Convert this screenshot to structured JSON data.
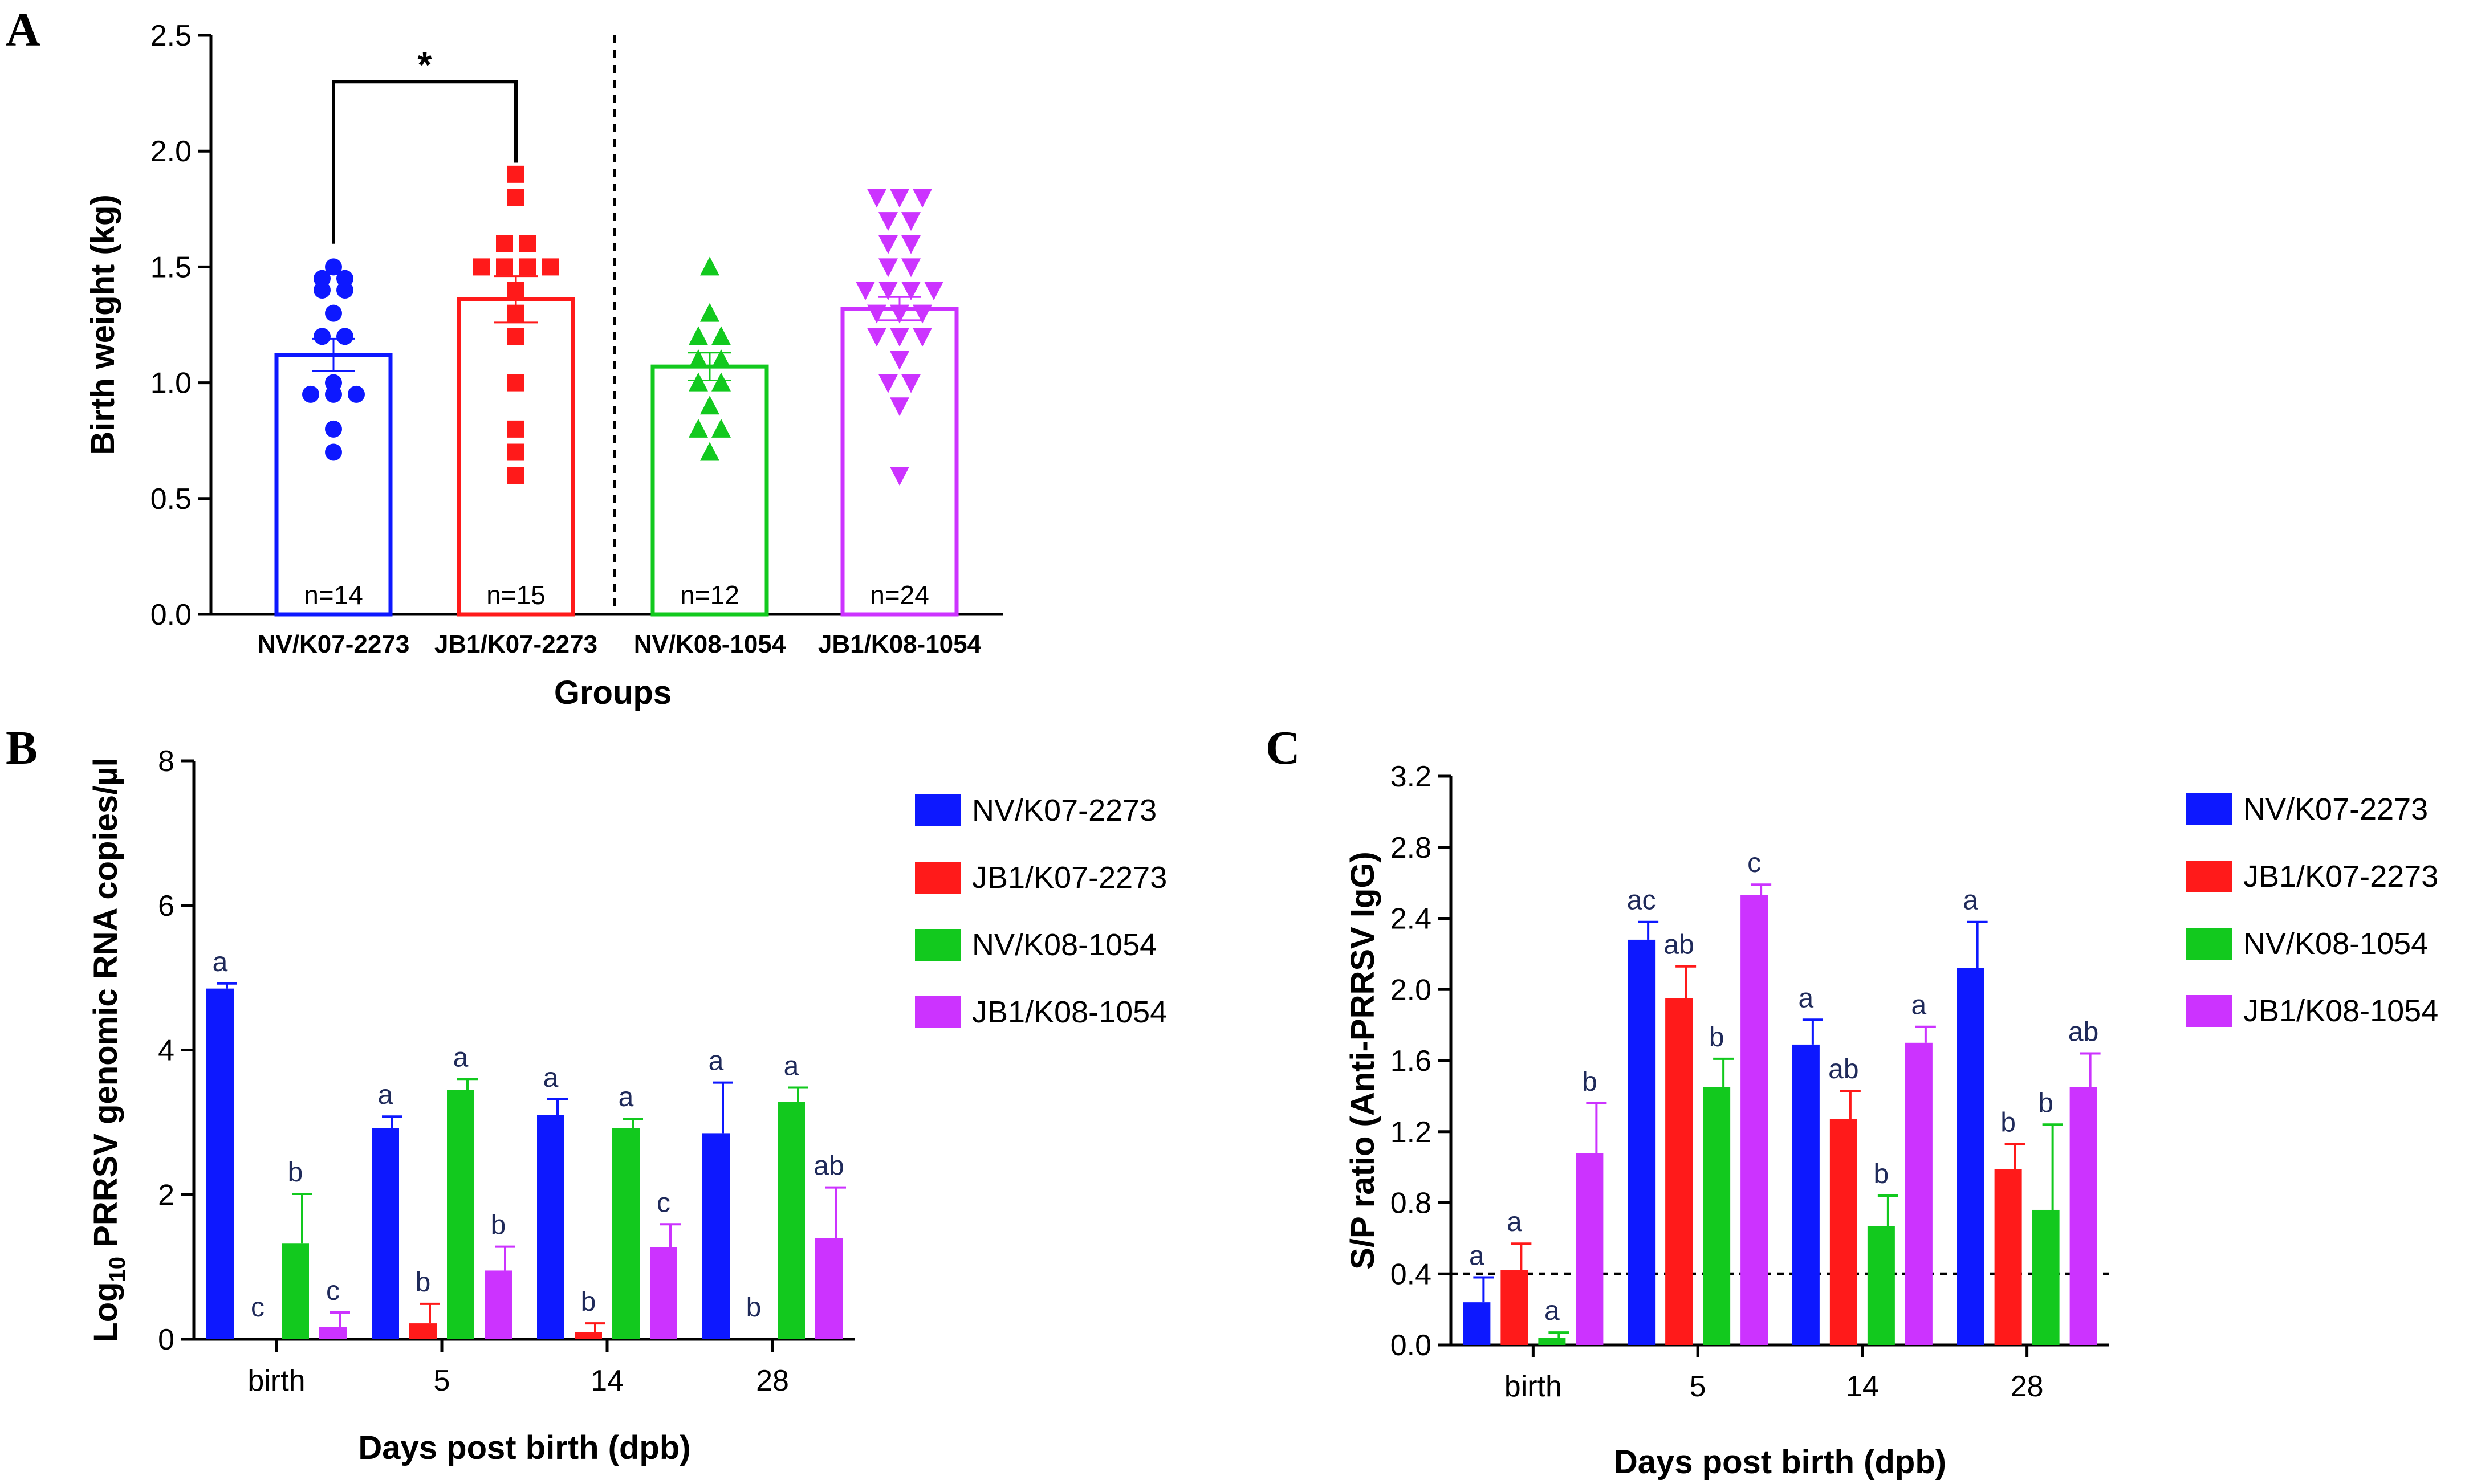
{
  "series_colors": {
    "NV/K07-2273": "#0d18ff",
    "JB1/K07-2273": "#ff1a1a",
    "NV/K08-1054": "#12c91e",
    "JB1/K08-1054": "#cc33ff"
  },
  "chart_data": [
    {
      "panel": "A",
      "type": "scatter",
      "ylabel": "Birth weight (kg)",
      "xlabel": "Groups",
      "ylim": [
        0,
        2.5
      ],
      "yticks": [
        "0.0",
        "0.5",
        "1.0",
        "1.5",
        "2.0",
        "2.5"
      ],
      "significance": "*",
      "groups": [
        {
          "name": "NV/K07-2273",
          "n_label": "n=14",
          "mean": 1.12,
          "sem": 0.07,
          "marker": "circle",
          "points": [
            1.5,
            1.45,
            1.45,
            1.4,
            1.4,
            1.3,
            1.2,
            1.2,
            1.0,
            0.95,
            0.95,
            0.95,
            0.8,
            0.7
          ]
        },
        {
          "name": "JB1/K07-2273",
          "n_label": "n=15",
          "mean": 1.36,
          "sem": 0.1,
          "marker": "square",
          "points": [
            1.9,
            1.8,
            1.6,
            1.6,
            1.5,
            1.5,
            1.5,
            1.5,
            1.4,
            1.3,
            1.2,
            1.0,
            0.8,
            0.7,
            0.6
          ]
        },
        {
          "name": "NV/K08-1054",
          "n_label": "n=12",
          "mean": 1.07,
          "sem": 0.06,
          "marker": "triangle-up",
          "points": [
            1.5,
            1.3,
            1.2,
            1.2,
            1.1,
            1.1,
            1.0,
            1.0,
            0.9,
            0.8,
            0.8,
            0.7
          ]
        },
        {
          "name": "JB1/K08-1054",
          "n_label": "n=24",
          "mean": 1.32,
          "sem": 0.05,
          "marker": "triangle-down",
          "points": [
            1.8,
            1.8,
            1.8,
            1.7,
            1.7,
            1.6,
            1.6,
            1.5,
            1.5,
            1.4,
            1.4,
            1.4,
            1.4,
            1.3,
            1.3,
            1.3,
            1.2,
            1.2,
            1.2,
            1.1,
            1.0,
            1.0,
            0.9,
            0.6
          ]
        }
      ]
    },
    {
      "panel": "B",
      "type": "bar",
      "ylabel_prefix": "Log",
      "ylabel_sub": "10",
      "ylabel_rest": " PRRSV genomic RNA copies/µl",
      "xlabel": "Days post birth (dpb)",
      "ylim": [
        0,
        8
      ],
      "yticks": [
        "0",
        "2",
        "4",
        "6",
        "8"
      ],
      "categories": [
        "birth",
        "5",
        "14",
        "28"
      ],
      "series": [
        {
          "name": "NV/K07-2273",
          "values": [
            4.85,
            2.92,
            3.1,
            2.85
          ],
          "errors": [
            0.07,
            0.16,
            0.22,
            0.7
          ],
          "letters": [
            "a",
            "a",
            "a",
            "a"
          ]
        },
        {
          "name": "JB1/K07-2273",
          "values": [
            0,
            0.22,
            0.1,
            0
          ],
          "errors": [
            0,
            0.27,
            0.12,
            0
          ],
          "letters": [
            "c",
            "b",
            "b",
            "b"
          ]
        },
        {
          "name": "NV/K08-1054",
          "values": [
            1.33,
            3.45,
            2.92,
            3.28
          ],
          "errors": [
            0.68,
            0.15,
            0.13,
            0.2
          ],
          "letters": [
            "b",
            "a",
            "a",
            "a"
          ]
        },
        {
          "name": "JB1/K08-1054",
          "values": [
            0.17,
            0.95,
            1.27,
            1.4
          ],
          "errors": [
            0.2,
            0.33,
            0.32,
            0.7
          ],
          "letters": [
            "c",
            "b",
            "c",
            "ab"
          ]
        }
      ]
    },
    {
      "panel": "C",
      "type": "bar",
      "ylabel": "S/P ratio (Anti-PRRSV IgG)",
      "xlabel": "Days post birth (dpb)",
      "ylim": [
        0,
        3.2
      ],
      "yticks": [
        "0.0",
        "0.4",
        "0.8",
        "1.2",
        "1.6",
        "2.0",
        "2.4",
        "2.8",
        "3.2"
      ],
      "cutoff": 0.4,
      "categories": [
        "birth",
        "5",
        "14",
        "28"
      ],
      "series": [
        {
          "name": "NV/K07-2273",
          "values": [
            0.24,
            2.28,
            1.69,
            2.12
          ],
          "errors": [
            0.14,
            0.1,
            0.14,
            0.26
          ],
          "letters": [
            "a",
            "ac",
            "a",
            "a"
          ]
        },
        {
          "name": "JB1/K07-2273",
          "values": [
            0.42,
            1.95,
            1.27,
            0.99
          ],
          "errors": [
            0.15,
            0.18,
            0.16,
            0.14
          ],
          "letters": [
            "a",
            "ab",
            "ab",
            "b"
          ]
        },
        {
          "name": "NV/K08-1054",
          "values": [
            0.04,
            1.45,
            0.67,
            0.76
          ],
          "errors": [
            0.03,
            0.16,
            0.17,
            0.48
          ],
          "letters": [
            "a",
            "b",
            "b",
            "b"
          ]
        },
        {
          "name": "JB1/K08-1054",
          "values": [
            1.08,
            2.53,
            1.7,
            1.45
          ],
          "errors": [
            0.28,
            0.06,
            0.09,
            0.19
          ],
          "letters": [
            "b",
            "c",
            "a",
            "ab"
          ]
        }
      ]
    }
  ]
}
